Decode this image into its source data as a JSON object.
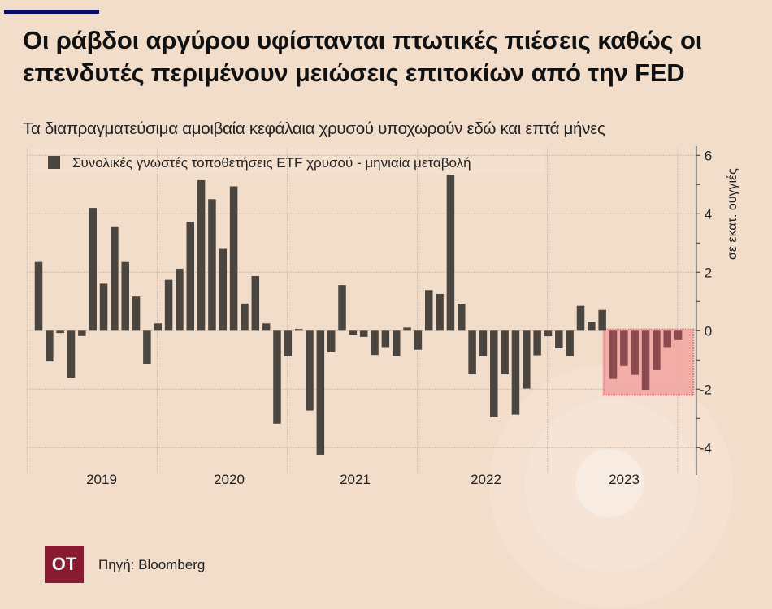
{
  "header": {
    "title": "Οι ράβδοι αργύρου υφίστανται πτωτικές πιέσεις καθώς οι επενδυτές περιμένουν μειώσεις επιτοκίων από την FED",
    "subtitle": "Τα διαπραγματεύσιμα αμοιβαία κεφάλαια χρυσού υποχωρούν εδώ και επτά μήνες"
  },
  "footer": {
    "logo_text": "OT",
    "source": "Πηγή: Bloomberg"
  },
  "colors": {
    "background": "#f2ddcb",
    "bar": "#4a453f",
    "highlight_bar": "#8a4a4e",
    "highlight_fill": "#f2a8a4",
    "highlight_border": "#e06a72",
    "brand": "#8a1a30",
    "accent_line": "#0a0a6a"
  },
  "chart_data": {
    "type": "bar",
    "title": "Οι ράβδοι αργύρου υφίστανται πτωτικές πιέσεις καθώς οι επενδυτές περιμένουν μειώσεις επιτοκίων από την FED",
    "subtitle": "Τα διαπραγματεύσιμα αμοιβαία κεφάλαια χρυσού υποχωρούν εδώ και επτά μήνες",
    "legend": [
      "Συνολικές γνωστές τοποθετήσεις ETF χρυσού - μηνιαία μεταβολή"
    ],
    "legend_position": "top-left",
    "xlabel": "",
    "ylabel": "σε εκατ. ουγγιές",
    "y_axis_side": "right",
    "ylim": [
      -4.5,
      6
    ],
    "yticks": [
      6,
      4,
      2,
      0,
      -2,
      -4
    ],
    "x_tick_labels": [
      "2019",
      "2020",
      "2021",
      "2022",
      "2023"
    ],
    "x_start_month": "2019-02",
    "frequency": "monthly",
    "grid": true,
    "highlight": {
      "from_index": 53,
      "to_index": 59,
      "ymin": -2.2,
      "ymax": 0.05
    },
    "values": [
      2.35,
      -1.05,
      -0.08,
      -1.61,
      -0.18,
      4.2,
      1.61,
      3.57,
      2.35,
      1.17,
      -1.13,
      0.25,
      1.74,
      2.12,
      3.72,
      5.15,
      4.5,
      2.8,
      4.94,
      0.93,
      1.87,
      0.25,
      -3.18,
      -0.87,
      0.06,
      -2.73,
      -4.24,
      -0.74,
      1.56,
      -0.14,
      -0.21,
      -0.83,
      -0.56,
      -0.87,
      0.11,
      -0.65,
      1.39,
      1.26,
      5.34,
      0.92,
      -1.49,
      -0.87,
      -2.96,
      -1.49,
      -2.87,
      -1.98,
      -0.84,
      -0.19,
      -0.6,
      -0.87,
      0.85,
      0.3,
      0.71,
      -1.65,
      -1.21,
      -1.51,
      -2.02,
      -1.35,
      -0.56,
      -0.32
    ]
  }
}
